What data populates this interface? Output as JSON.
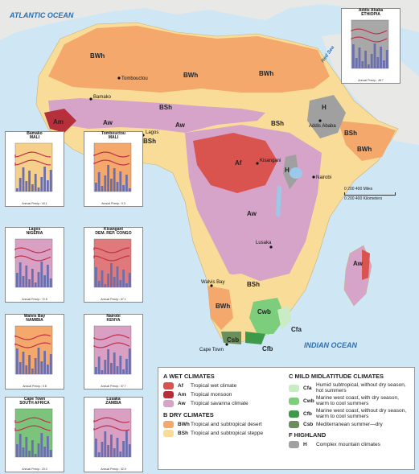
{
  "oceans": {
    "atlantic": "ATLANTIC OCEAN",
    "indian": "INDIAN OCEAN",
    "red_sea": "Red Sea"
  },
  "zone_labels": [
    "BWh",
    "BWh",
    "BWh",
    "BSh",
    "BSh",
    "BSh",
    "Am",
    "Aw",
    "Aw",
    "Af",
    "H",
    "H",
    "BWh",
    "BSh",
    "Aw",
    "Cwb",
    "Csb",
    "Cfa",
    "Cfb",
    "Aw",
    "BWh",
    "BSh"
  ],
  "cities": {
    "tombouctou": "Tombouctou",
    "bamako": "Bamako",
    "lagos": "Lagos",
    "addis": "Addis Ababa",
    "kisangani": "Kisangani",
    "nairobi": "Nairobi",
    "lusaka": "Lusaka",
    "walvis": "Walvis Bay",
    "capetown": "Cape Town"
  },
  "scale": {
    "miles": "0      200      400 Miles",
    "km": "0   200  400 Kilometers"
  },
  "climographs": [
    {
      "city": "Bamako",
      "country": "MALI",
      "precip": "Annual Precip.: 44.1",
      "color": "#f6d08a"
    },
    {
      "city": "Tombouctou",
      "country": "MALI",
      "precip": "Annual Precip.: 9.3",
      "color": "#f4a86c"
    },
    {
      "city": "Lagos",
      "country": "NIGERIA",
      "precip": "Annual Precip.: 72.5",
      "color": "#d9a0c4"
    },
    {
      "city": "Kisangani",
      "country": "DEM. REP. CONGO",
      "precip": "Annual Precip.: 67.1",
      "color": "#e07a7a"
    },
    {
      "city": "Walvis Bay",
      "country": "NAMIBIA",
      "precip": "Annual Precip.: 0.8",
      "color": "#f4a86c"
    },
    {
      "city": "Nairobi",
      "country": "KENYA",
      "precip": "Annual Precip.: 37.7",
      "color": "#d9a0c4"
    },
    {
      "city": "Cape Town",
      "country": "SOUTH AFRICA",
      "precip": "Annual Precip.: 20.0",
      "color": "#7cc47c"
    },
    {
      "city": "Lusaka",
      "country": "ZAMBIA",
      "precip": "Annual Precip.: 32.9",
      "color": "#d9a0c4"
    },
    {
      "city": "Addis Ababa",
      "country": "ETHIOPIA",
      "precip": "Annual Precip.: 48.7",
      "color": "#a8a8a8"
    }
  ],
  "axis": {
    "temp": "Temperature (°F)",
    "precip": "Precipitation (in.)",
    "months": "J F M A M J J A S O N D"
  },
  "legend": {
    "a_head": "A  WET CLIMATES",
    "af_code": "Af",
    "af": "Tropical wet climate",
    "af_color": "#d9534f",
    "am_code": "Am",
    "am": "Tropical monsoon",
    "am_color": "#b5303a",
    "aw_code": "Aw",
    "aw": "Tropical savanna climate",
    "aw_color": "#d6a3c9",
    "b_head": "B  DRY CLIMATES",
    "bwh_code": "BWh",
    "bwh": "Tropical and subtropical desert",
    "bwh_color": "#f4a86c",
    "bsh_code": "BSh",
    "bsh": "Tropical and subtropical steppe",
    "bsh_color": "#f9dc98",
    "c_head": "C  MILD MIDLATITUDE CLIMATES",
    "cfa_code": "Cfa",
    "cfa": "Humid subtropical, without dry season, hot summers",
    "cfa_color": "#c9ecc4",
    "cwb_code": "Cwb",
    "cwb": "Marine west coast, with dry season, warm to cool summers",
    "cwb_color": "#7ccd7c",
    "cfb_code": "Cfb",
    "cfb": "Marine west coast, without dry season, warm to cool summers",
    "cfb_color": "#3d9a4a",
    "csb_code": "Csb",
    "csb": "Mediterranean summer—dry",
    "csb_color": "#6b8f5c",
    "f_head": "F  HIGHLAND",
    "h_code": "H",
    "h": "Complex mountain climates",
    "h_color": "#a0a0a0"
  }
}
